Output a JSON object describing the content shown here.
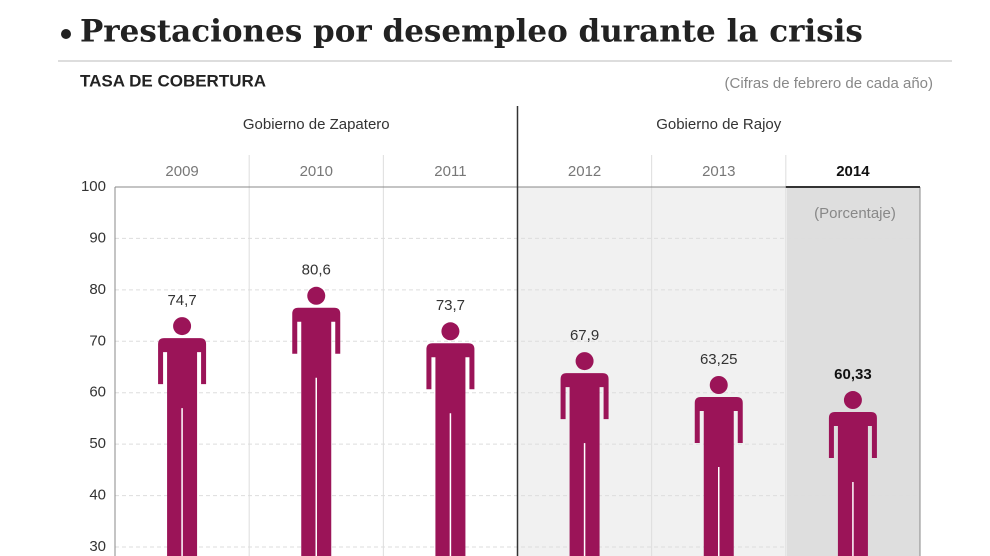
{
  "chart_data": {
    "type": "pictogram",
    "title": "Prestaciones por desempleo durante la crisis",
    "subtitle": "TASA DE COBERTURA",
    "note": "(Cifras de febrero de cada año)",
    "unit_label": "(Porcentaje)",
    "groups": [
      "Gobierno de Zapatero",
      "Gobierno de Rajoy"
    ],
    "categories": [
      "2009",
      "2010",
      "2011",
      "2012",
      "2013",
      "2014"
    ],
    "values": [
      74.7,
      80.6,
      73.7,
      67.9,
      63.25,
      60.33
    ],
    "value_labels": [
      "74,7",
      "80,6",
      "73,7",
      "67,9",
      "63,25",
      "60,33"
    ],
    "color": "#9b1458",
    "ylim": [
      30,
      100
    ],
    "yticks": [
      30,
      40,
      50,
      60,
      70,
      80,
      90,
      100
    ],
    "grid": true
  }
}
